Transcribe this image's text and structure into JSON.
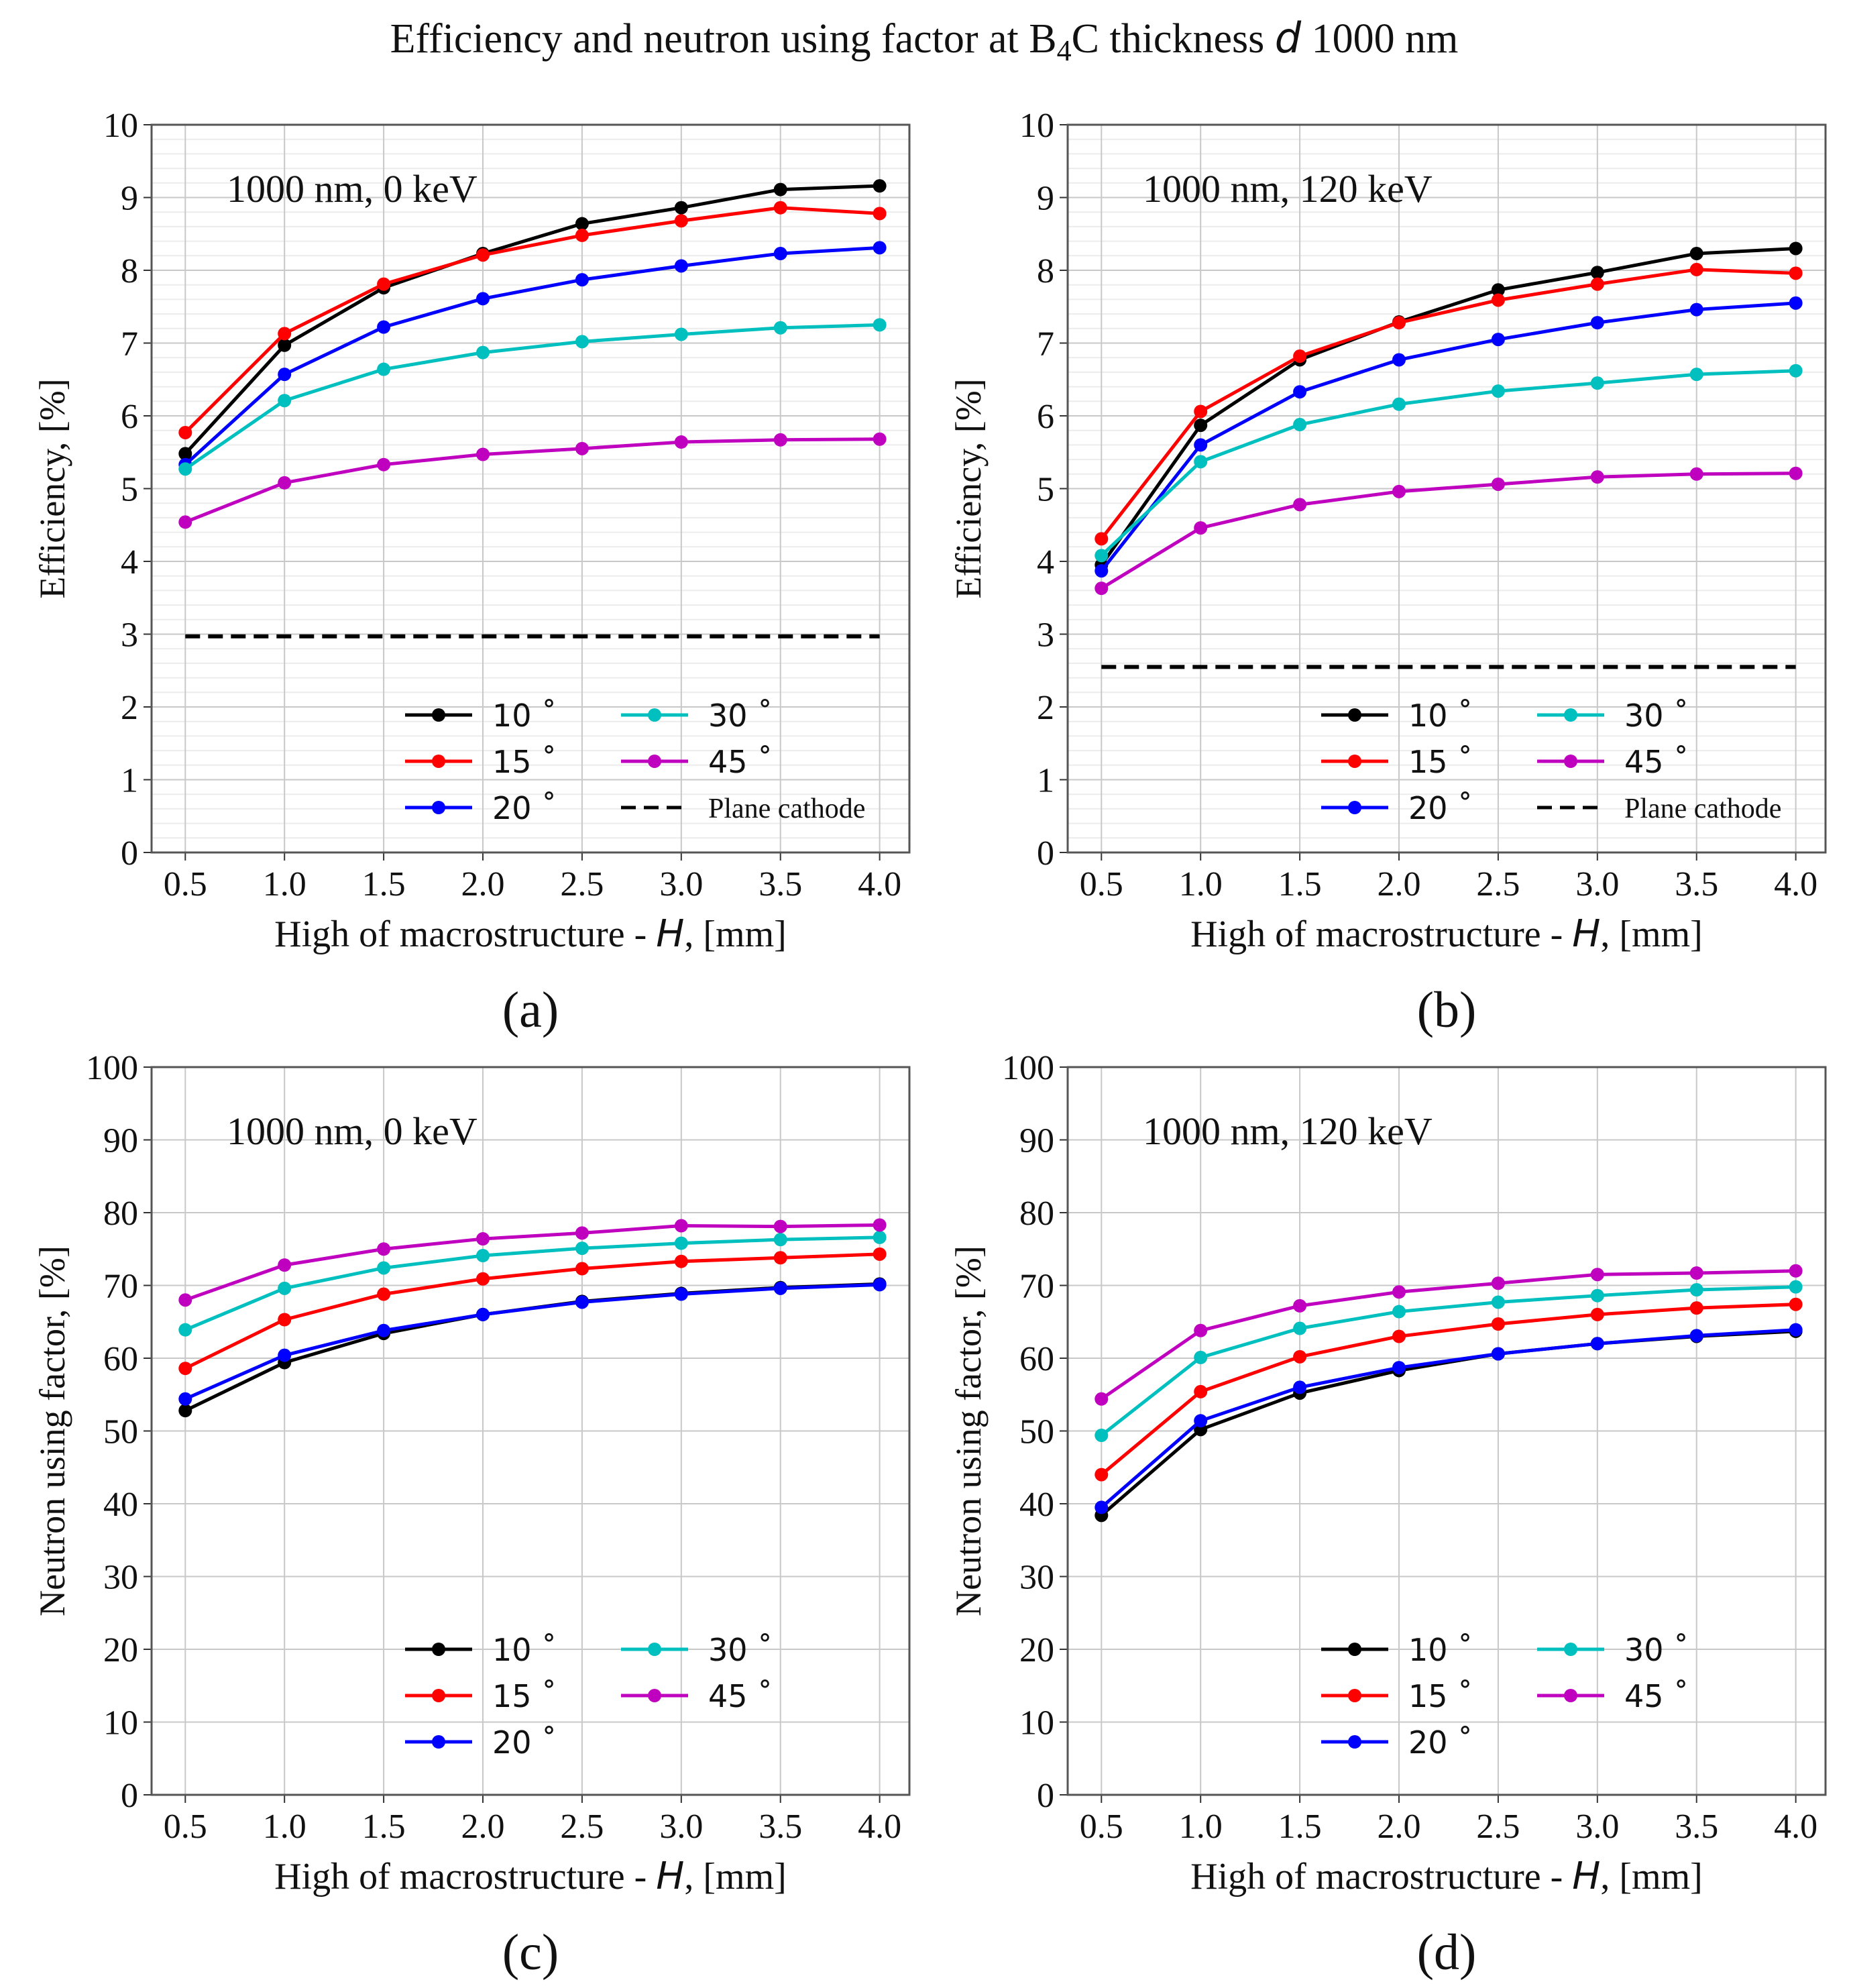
{
  "figure_title_parts": [
    "Efficiency and neutron using factor at B",
    "4",
    "C thickness ",
    "d",
    " 1000 nm"
  ],
  "colors": {
    "10°": "#000000",
    "15°": "#ff0000",
    "20°": "#0000ff",
    "30°": "#00bfbf",
    "45°": "#bf00bf",
    "grid": "#c8c8c8",
    "plane": "#000000"
  },
  "chart_data": [
    {
      "id": "a",
      "type": "line",
      "panel_label": "(a)",
      "annotation": "1000 nm, 0 keV",
      "xlabel": "High of macrostructure - ",
      "xlabel_var": "H",
      "xlabel_unit": ", [mm]",
      "ylabel": "Efficiency, [%]",
      "x": [
        0.5,
        1.0,
        1.5,
        2.0,
        2.5,
        3.0,
        3.5,
        4.0
      ],
      "xticks": [
        "0.5",
        "1.0",
        "1.5",
        "2.0",
        "2.5",
        "3.0",
        "3.5",
        "4.0"
      ],
      "xlim": [
        0.33,
        4.15
      ],
      "ylim": [
        0,
        10
      ],
      "yticks": [
        "0",
        "1",
        "2",
        "3",
        "4",
        "5",
        "6",
        "7",
        "8",
        "9",
        "10"
      ],
      "minor_grid": true,
      "series": [
        {
          "name": "10°",
          "label": "10 ˚",
          "values": [
            5.48,
            6.97,
            7.76,
            8.23,
            8.64,
            8.86,
            9.11,
            9.16
          ]
        },
        {
          "name": "15°",
          "label": "15 ˚",
          "values": [
            5.77,
            7.13,
            7.81,
            8.21,
            8.48,
            8.68,
            8.86,
            8.78
          ]
        },
        {
          "name": "20°",
          "label": "20 ˚",
          "values": [
            5.33,
            6.57,
            7.22,
            7.61,
            7.87,
            8.06,
            8.23,
            8.31
          ]
        },
        {
          "name": "30°",
          "label": "30 ˚",
          "values": [
            5.27,
            6.21,
            6.64,
            6.87,
            7.02,
            7.12,
            7.21,
            7.25
          ]
        },
        {
          "name": "45°",
          "label": "45 ˚",
          "values": [
            4.54,
            5.08,
            5.33,
            5.47,
            5.55,
            5.64,
            5.67,
            5.68
          ]
        }
      ],
      "reference": {
        "label": "Plane cathode",
        "value": 2.97
      },
      "legend": "lower-right"
    },
    {
      "id": "b",
      "type": "line",
      "panel_label": "(b)",
      "annotation": "1000 nm, 120 keV",
      "xlabel": "High of macrostructure - ",
      "xlabel_var": "H",
      "xlabel_unit": ", [mm]",
      "ylabel": "Efficiency, [%]",
      "x": [
        0.5,
        1.0,
        1.5,
        2.0,
        2.5,
        3.0,
        3.5,
        4.0
      ],
      "xticks": [
        "0.5",
        "1.0",
        "1.5",
        "2.0",
        "2.5",
        "3.0",
        "3.5",
        "4.0"
      ],
      "xlim": [
        0.33,
        4.15
      ],
      "ylim": [
        0,
        10
      ],
      "yticks": [
        "0",
        "1",
        "2",
        "3",
        "4",
        "5",
        "6",
        "7",
        "8",
        "9",
        "10"
      ],
      "minor_grid": true,
      "series": [
        {
          "name": "10°",
          "label": "10 ˚",
          "values": [
            3.95,
            5.87,
            6.77,
            7.29,
            7.73,
            7.97,
            8.23,
            8.3
          ]
        },
        {
          "name": "15°",
          "label": "15 ˚",
          "values": [
            4.31,
            6.06,
            6.82,
            7.28,
            7.59,
            7.81,
            8.01,
            7.96
          ]
        },
        {
          "name": "20°",
          "label": "20 ˚",
          "values": [
            3.87,
            5.6,
            6.33,
            6.77,
            7.05,
            7.28,
            7.46,
            7.55
          ]
        },
        {
          "name": "30°",
          "label": "30 ˚",
          "values": [
            4.08,
            5.37,
            5.88,
            6.16,
            6.34,
            6.45,
            6.57,
            6.62
          ]
        },
        {
          "name": "45°",
          "label": "45 ˚",
          "values": [
            3.63,
            4.46,
            4.78,
            4.96,
            5.06,
            5.16,
            5.2,
            5.21
          ]
        }
      ],
      "reference": {
        "label": "Plane cathode",
        "value": 2.55
      },
      "legend": "lower-right"
    },
    {
      "id": "c",
      "type": "line",
      "panel_label": "(c)",
      "annotation": "1000 nm, 0 keV",
      "xlabel": "High of macrostructure - ",
      "xlabel_var": "H",
      "xlabel_unit": ", [mm]",
      "ylabel": "Neutron using factor, [%]",
      "x": [
        0.5,
        1.0,
        1.5,
        2.0,
        2.5,
        3.0,
        3.5,
        4.0
      ],
      "xticks": [
        "0.5",
        "1.0",
        "1.5",
        "2.0",
        "2.5",
        "3.0",
        "3.5",
        "4.0"
      ],
      "xlim": [
        0.33,
        4.15
      ],
      "ylim": [
        0,
        100
      ],
      "yticks": [
        "0",
        "10",
        "20",
        "30",
        "40",
        "50",
        "60",
        "70",
        "80",
        "90",
        "100"
      ],
      "minor_grid": false,
      "series": [
        {
          "name": "10°",
          "label": "10 ˚",
          "values": [
            52.8,
            59.4,
            63.4,
            66.0,
            67.8,
            68.9,
            69.7,
            70.2
          ]
        },
        {
          "name": "15°",
          "label": "15 ˚",
          "values": [
            58.6,
            65.3,
            68.8,
            70.9,
            72.3,
            73.3,
            73.8,
            74.3
          ]
        },
        {
          "name": "20°",
          "label": "20 ˚",
          "values": [
            54.4,
            60.4,
            63.8,
            66.0,
            67.7,
            68.8,
            69.6,
            70.1
          ]
        },
        {
          "name": "30°",
          "label": "30 ˚",
          "values": [
            63.9,
            69.6,
            72.4,
            74.1,
            75.1,
            75.8,
            76.3,
            76.6
          ]
        },
        {
          "name": "45°",
          "label": "45 ˚",
          "values": [
            68.0,
            72.8,
            75.0,
            76.4,
            77.2,
            78.2,
            78.1,
            78.3
          ]
        }
      ],
      "legend": "lower-right"
    },
    {
      "id": "d",
      "type": "line",
      "panel_label": "(d)",
      "annotation": "1000 nm, 120 keV",
      "xlabel": "High of macrostructure - ",
      "xlabel_var": "H",
      "xlabel_unit": ", [mm]",
      "ylabel": "Neutron using factor, [%]",
      "x": [
        0.5,
        1.0,
        1.5,
        2.0,
        2.5,
        3.0,
        3.5,
        4.0
      ],
      "xticks": [
        "0.5",
        "1.0",
        "1.5",
        "2.0",
        "2.5",
        "3.0",
        "3.5",
        "4.0"
      ],
      "xlim": [
        0.33,
        4.15
      ],
      "ylim": [
        0,
        100
      ],
      "yticks": [
        "0",
        "10",
        "20",
        "30",
        "40",
        "50",
        "60",
        "70",
        "80",
        "90",
        "100"
      ],
      "minor_grid": false,
      "series": [
        {
          "name": "10°",
          "label": "10 ˚",
          "values": [
            38.4,
            50.2,
            55.2,
            58.3,
            60.6,
            62.0,
            63.0,
            63.7
          ]
        },
        {
          "name": "15°",
          "label": "15 ˚",
          "values": [
            44.0,
            55.4,
            60.2,
            63.0,
            64.7,
            66.0,
            66.9,
            67.4
          ]
        },
        {
          "name": "20°",
          "label": "20 ˚",
          "values": [
            39.5,
            51.4,
            56.0,
            58.7,
            60.6,
            62.0,
            63.1,
            63.9
          ]
        },
        {
          "name": "30°",
          "label": "30 ˚",
          "values": [
            49.4,
            60.1,
            64.1,
            66.4,
            67.7,
            68.6,
            69.4,
            69.8
          ]
        },
        {
          "name": "45°",
          "label": "45 ˚",
          "values": [
            54.4,
            63.8,
            67.2,
            69.1,
            70.3,
            71.5,
            71.7,
            72.0
          ]
        }
      ],
      "legend": "lower-right"
    }
  ]
}
